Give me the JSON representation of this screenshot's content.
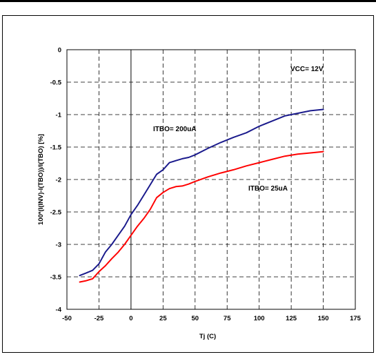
{
  "chart_data": {
    "type": "line",
    "xlabel": "Tj (C)",
    "ylabel": "100*(I(INV)-I(TBO))/I(TBO)  [%]",
    "xlim": [
      -50,
      175
    ],
    "ylim": [
      -4,
      0
    ],
    "x_ticks": [
      -50,
      -25,
      0,
      25,
      50,
      75,
      100,
      125,
      150,
      175
    ],
    "y_ticks": [
      0,
      -0.5,
      -1,
      -1.5,
      -2,
      -2.5,
      -3,
      -3.5,
      -4
    ],
    "x_tick_labels": [
      "-50",
      "-25",
      "0",
      "25",
      "50",
      "75",
      "100",
      "125",
      "150",
      "175"
    ],
    "y_tick_labels": [
      "0",
      "-0.5",
      "-1",
      "-1.5",
      "-2",
      "-2.5",
      "-3",
      "-3.5",
      "-4"
    ],
    "grid": true,
    "series": [
      {
        "name": "ITBO= 200uA",
        "color": "#1a1a8c",
        "x": [
          -40,
          -35,
          -30,
          -25,
          -20,
          -15,
          -10,
          -5,
          0,
          5,
          10,
          15,
          20,
          25,
          30,
          35,
          40,
          45,
          50,
          60,
          70,
          80,
          90,
          100,
          110,
          120,
          130,
          140,
          150
        ],
        "y": [
          -3.48,
          -3.44,
          -3.4,
          -3.3,
          -3.12,
          -3.0,
          -2.86,
          -2.72,
          -2.54,
          -2.4,
          -2.24,
          -2.08,
          -1.92,
          -1.85,
          -1.74,
          -1.71,
          -1.68,
          -1.66,
          -1.62,
          -1.52,
          -1.43,
          -1.35,
          -1.28,
          -1.18,
          -1.1,
          -1.02,
          -0.98,
          -0.94,
          -0.92
        ]
      },
      {
        "name": "ITBO= 25uA",
        "color": "#ff0000",
        "x": [
          -40,
          -35,
          -30,
          -25,
          -20,
          -15,
          -10,
          -5,
          0,
          5,
          10,
          15,
          20,
          25,
          30,
          35,
          40,
          45,
          50,
          60,
          70,
          80,
          90,
          100,
          110,
          120,
          130,
          140,
          150
        ],
        "y": [
          -3.58,
          -3.56,
          -3.53,
          -3.42,
          -3.33,
          -3.22,
          -3.12,
          -3.0,
          -2.86,
          -2.72,
          -2.6,
          -2.46,
          -2.28,
          -2.2,
          -2.14,
          -2.11,
          -2.1,
          -2.07,
          -2.03,
          -1.96,
          -1.9,
          -1.85,
          -1.79,
          -1.74,
          -1.69,
          -1.64,
          -1.61,
          -1.59,
          -1.57
        ]
      }
    ],
    "annotations": {
      "vcc": "VCC= 12V",
      "itbo_200": "ITBO= 200uA",
      "itbo_25": "ITBO= 25uA"
    }
  }
}
